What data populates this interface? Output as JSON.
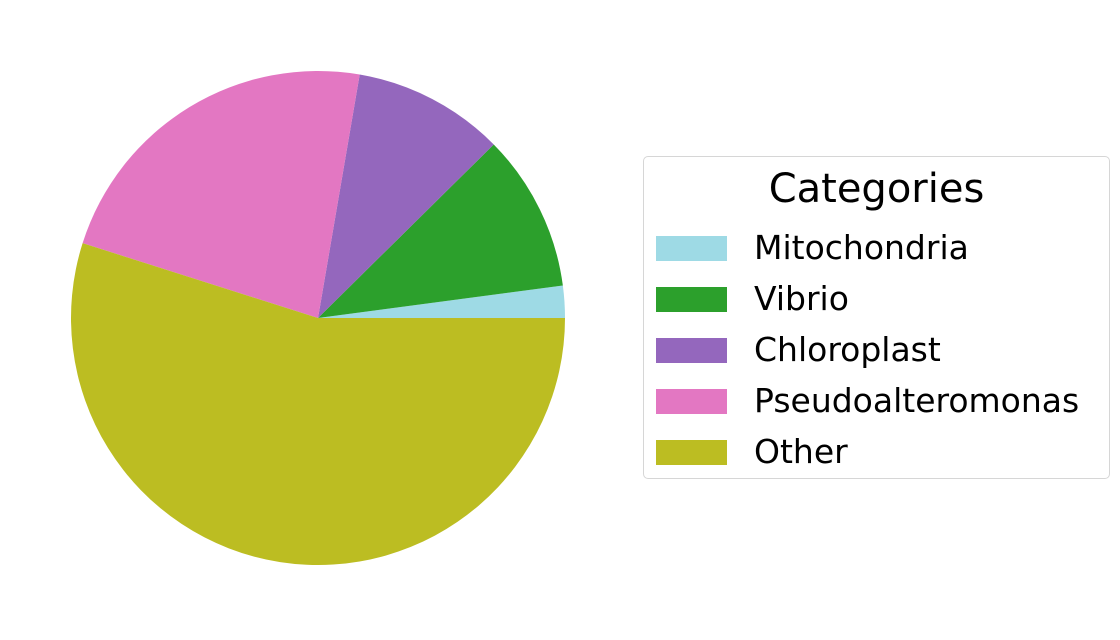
{
  "chart_data": {
    "type": "pie",
    "title": "",
    "start_angle_deg": 0,
    "direction": "counterclockwise",
    "slices": [
      {
        "label": "Mitochondria",
        "value": 2.1,
        "color": "#9edae5"
      },
      {
        "label": "Vibrio",
        "value": 10.3,
        "color": "#2ca02c"
      },
      {
        "label": "Chloroplast",
        "value": 9.9,
        "color": "#9467bd"
      },
      {
        "label": "Pseudoalteromonas",
        "value": 22.8,
        "color": "#e377c2"
      },
      {
        "label": "Other",
        "value": 54.9,
        "color": "#bcbd22"
      }
    ],
    "legend": {
      "title": "Categories",
      "placement": "right"
    }
  }
}
